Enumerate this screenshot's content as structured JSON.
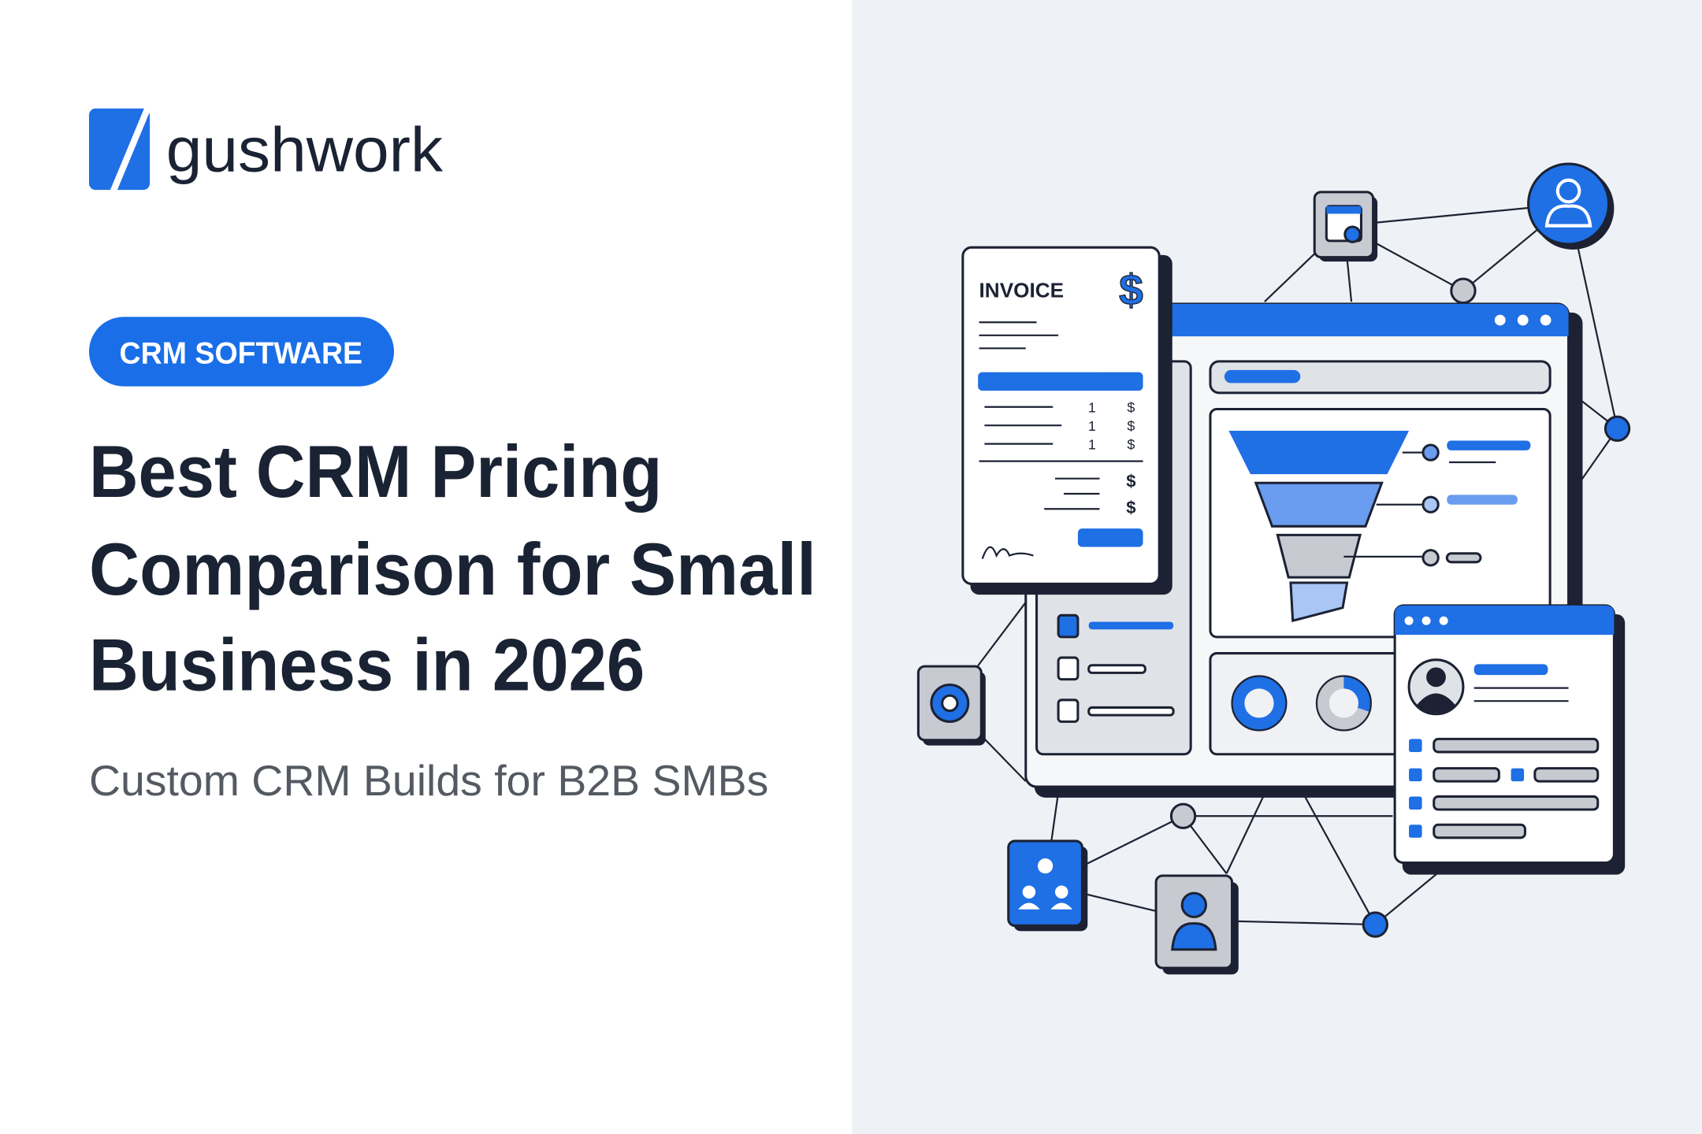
{
  "logo": {
    "name": "gushwork"
  },
  "badge": "CRM SOFTWARE",
  "title_lines": [
    "Best CRM Pricing",
    "Comparison for Small",
    "Business in 2026"
  ],
  "subtitle": "Custom CRM Builds for B2B SMBs",
  "illustration": {
    "invoice": {
      "title": "INVOICE",
      "currency": "$",
      "items": [
        {
          "qty": "1",
          "price": "$"
        },
        {
          "qty": "1",
          "price": "$"
        },
        {
          "qty": "1",
          "price": "$"
        }
      ],
      "totals": [
        "$",
        "$"
      ]
    }
  }
}
